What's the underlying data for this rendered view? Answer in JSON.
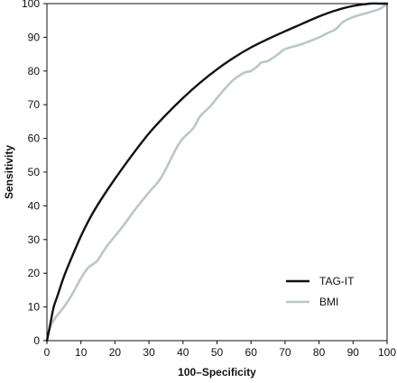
{
  "chart_data": {
    "type": "line",
    "title": "",
    "xlabel": "100–Specificity",
    "ylabel": "Sensitivity",
    "xlim": [
      0,
      100
    ],
    "ylim": [
      0,
      100
    ],
    "xticks": [
      "0",
      "10",
      "20",
      "30",
      "40",
      "50",
      "60",
      "70",
      "80",
      "90",
      "100"
    ],
    "yticks": [
      "0",
      "10",
      "20",
      "30",
      "40",
      "50",
      "60",
      "70",
      "80",
      "90",
      "100"
    ],
    "grid": false,
    "legend_position": "bottom-right",
    "series": [
      {
        "name": "TAG-IT",
        "color": "#111111",
        "x": [
          0,
          1,
          2,
          3,
          5,
          7,
          10,
          13,
          16,
          20,
          25,
          30,
          35,
          40,
          45,
          50,
          55,
          60,
          65,
          70,
          75,
          80,
          85,
          90,
          95,
          98,
          100
        ],
        "y": [
          0,
          5,
          10,
          13,
          19,
          24,
          31,
          37,
          42,
          48,
          55,
          61.5,
          67,
          72,
          76.5,
          80.5,
          84,
          87,
          89.5,
          91.8,
          94,
          96.2,
          98,
          99.3,
          100,
          100,
          100
        ]
      },
      {
        "name": "BMI",
        "color": "#b9c7cd",
        "x": [
          0,
          1,
          2,
          3,
          5,
          7,
          10,
          12,
          14,
          15,
          18,
          22,
          26,
          30,
          33,
          35,
          38,
          40,
          43,
          45,
          48,
          50,
          53,
          55,
          58,
          60,
          62,
          63,
          65,
          68,
          70,
          75,
          80,
          82,
          85,
          87,
          90,
          95,
          98,
          100
        ],
        "y": [
          0,
          4,
          6,
          7.5,
          10,
          13,
          18.5,
          21.5,
          23,
          24,
          28.5,
          33.5,
          39,
          44,
          47.5,
          51,
          57,
          60,
          63,
          66.5,
          69.5,
          72,
          75.5,
          77.5,
          79.5,
          80,
          81.5,
          82.5,
          83,
          85,
          86.5,
          88,
          90,
          91,
          92.5,
          94.5,
          96,
          97.5,
          98.5,
          100
        ]
      }
    ]
  }
}
